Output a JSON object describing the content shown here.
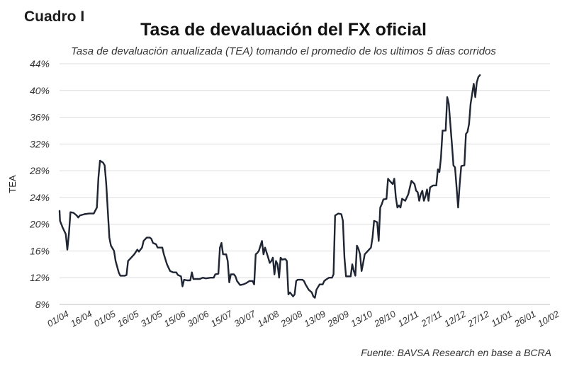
{
  "header": {
    "label": "Cuadro I",
    "title": "Tasa de devaluación del FX oficial",
    "subtitle": "Tasa de devaluación anualizada (TEA) tomando el promedio de los ultimos 5 dias corridos"
  },
  "footer": {
    "source": "Fuente: BAVSA Research en base a BCRA"
  },
  "chart_data": {
    "type": "line",
    "title": "Tasa de devaluación del FX oficial",
    "subtitle": "Tasa de devaluación anualizada (TEA) tomando el promedio de los ultimos 5 dias corridos",
    "xlabel": "",
    "ylabel": "TEA",
    "ylim": [
      8,
      44
    ],
    "y_ticks": [
      8,
      12,
      16,
      20,
      24,
      28,
      32,
      36,
      40,
      44
    ],
    "y_tick_suffix": "%",
    "x_range": [
      0,
      315
    ],
    "x_ticks": [
      {
        "day": 0,
        "label": "01/04"
      },
      {
        "day": 15,
        "label": "16/04"
      },
      {
        "day": 30,
        "label": "01/05"
      },
      {
        "day": 45,
        "label": "16/05"
      },
      {
        "day": 60,
        "label": "31/05"
      },
      {
        "day": 75,
        "label": "15/06"
      },
      {
        "day": 90,
        "label": "30/06"
      },
      {
        "day": 105,
        "label": "15/07"
      },
      {
        "day": 120,
        "label": "30/07"
      },
      {
        "day": 135,
        "label": "14/08"
      },
      {
        "day": 150,
        "label": "29/08"
      },
      {
        "day": 165,
        "label": "13/09"
      },
      {
        "day": 180,
        "label": "28/09"
      },
      {
        "day": 195,
        "label": "13/10"
      },
      {
        "day": 210,
        "label": "28/10"
      },
      {
        "day": 225,
        "label": "12/11"
      },
      {
        "day": 240,
        "label": "27/11"
      },
      {
        "day": 255,
        "label": "12/12"
      },
      {
        "day": 270,
        "label": "27/12"
      },
      {
        "day": 285,
        "label": "11/01"
      },
      {
        "day": 300,
        "label": "26/01"
      },
      {
        "day": 315,
        "label": "10/02"
      }
    ],
    "grid": true,
    "series": [
      {
        "name": "TEA",
        "color": "#1f2533",
        "points": [
          [
            0,
            22
          ],
          [
            0.3,
            20.5
          ],
          [
            2,
            19.5
          ],
          [
            4,
            18.5
          ],
          [
            5,
            16.2
          ],
          [
            6,
            18.5
          ],
          [
            7,
            21.8
          ],
          [
            9,
            21.7
          ],
          [
            11,
            21.3
          ],
          [
            12,
            21
          ],
          [
            13,
            21.3
          ],
          [
            16,
            21.5
          ],
          [
            19,
            21.6
          ],
          [
            22,
            21.6
          ],
          [
            24,
            22.5
          ],
          [
            25,
            27
          ],
          [
            26,
            29.5
          ],
          [
            28,
            29.2
          ],
          [
            29,
            28.8
          ],
          [
            30,
            26
          ],
          [
            31,
            22
          ],
          [
            32,
            18
          ],
          [
            33,
            16.8
          ],
          [
            35,
            16
          ],
          [
            36,
            14.5
          ],
          [
            38,
            12.8
          ],
          [
            39,
            12.3
          ],
          [
            42,
            12.3
          ],
          [
            43,
            12.4
          ],
          [
            44,
            14.5
          ],
          [
            46,
            15
          ],
          [
            48,
            15.5
          ],
          [
            50,
            16.2
          ],
          [
            51,
            15.9
          ],
          [
            53,
            16.5
          ],
          [
            54,
            17.5
          ],
          [
            56,
            18
          ],
          [
            58,
            18
          ],
          [
            59,
            17.8
          ],
          [
            60,
            17.2
          ],
          [
            62,
            17
          ],
          [
            63,
            16.5
          ],
          [
            66,
            16.5
          ],
          [
            67,
            15.5
          ],
          [
            69,
            14
          ],
          [
            70,
            13.5
          ],
          [
            71,
            13
          ],
          [
            73,
            12.8
          ],
          [
            75,
            12.8
          ],
          [
            76,
            12.4
          ],
          [
            78,
            12.2
          ],
          [
            79,
            10.7
          ],
          [
            80,
            11.7
          ],
          [
            82,
            11.6
          ],
          [
            84,
            11.6
          ],
          [
            85,
            12.8
          ],
          [
            86,
            11.8
          ],
          [
            88,
            11.8
          ],
          [
            90,
            11.8
          ],
          [
            92,
            12
          ],
          [
            94,
            11.9
          ],
          [
            97,
            12
          ],
          [
            99,
            12
          ],
          [
            100,
            12.5
          ],
          [
            102,
            12.6
          ],
          [
            103,
            16.5
          ],
          [
            104,
            17.2
          ],
          [
            105,
            15.5
          ],
          [
            107,
            15.5
          ],
          [
            108,
            14.5
          ],
          [
            109,
            11.3
          ],
          [
            110,
            12.5
          ],
          [
            112,
            12.5
          ],
          [
            113,
            12.2
          ],
          [
            114,
            11.5
          ],
          [
            116,
            10.9
          ],
          [
            118,
            11
          ],
          [
            120,
            11.2
          ],
          [
            122,
            11.5
          ],
          [
            124,
            11.5
          ],
          [
            125,
            11
          ],
          [
            126,
            15.5
          ],
          [
            127,
            15.7
          ],
          [
            128,
            16
          ],
          [
            130,
            17.5
          ],
          [
            131,
            15.5
          ],
          [
            132,
            16.5
          ],
          [
            134,
            15
          ],
          [
            135,
            14.2
          ],
          [
            136,
            14.5
          ],
          [
            137,
            15
          ],
          [
            138,
            12.5
          ],
          [
            139,
            14.5
          ],
          [
            140,
            14
          ],
          [
            141,
            12
          ],
          [
            142,
            15
          ],
          [
            143,
            14.7
          ],
          [
            145,
            14.8
          ],
          [
            146,
            14.5
          ],
          [
            147,
            9.5
          ],
          [
            148,
            9.8
          ],
          [
            150,
            9.2
          ],
          [
            151,
            9.5
          ],
          [
            152,
            11.5
          ],
          [
            153,
            11.7
          ],
          [
            155,
            11.7
          ],
          [
            156,
            11.7
          ],
          [
            157,
            11.5
          ],
          [
            158,
            11
          ],
          [
            160,
            10.2
          ],
          [
            162,
            9.8
          ],
          [
            163,
            9.2
          ],
          [
            164,
            9
          ],
          [
            165,
            10.2
          ],
          [
            167,
            11
          ],
          [
            169,
            11
          ],
          [
            170,
            11.5
          ],
          [
            171,
            11.7
          ],
          [
            173,
            12
          ],
          [
            175,
            12
          ],
          [
            176,
            12.5
          ],
          [
            177,
            21.3
          ],
          [
            179,
            21.6
          ],
          [
            181,
            21.5
          ],
          [
            182,
            20.5
          ],
          [
            183,
            15
          ],
          [
            184,
            12.2
          ],
          [
            186,
            12.2
          ],
          [
            187,
            12.2
          ],
          [
            188,
            14
          ],
          [
            189,
            13
          ],
          [
            190,
            12.3
          ],
          [
            191,
            16.8
          ],
          [
            192,
            16.3
          ],
          [
            193,
            15.5
          ],
          [
            194,
            13
          ],
          [
            195,
            14.2
          ],
          [
            196,
            15.5
          ],
          [
            198,
            16
          ],
          [
            200,
            16.5
          ],
          [
            201,
            18
          ],
          [
            202,
            20.5
          ],
          [
            204,
            20.3
          ],
          [
            205,
            17.5
          ],
          [
            206,
            22.5
          ],
          [
            207,
            23
          ],
          [
            208,
            23.7
          ],
          [
            210,
            23.8
          ],
          [
            211,
            26.8
          ],
          [
            212,
            26.5
          ],
          [
            214,
            26
          ],
          [
            215,
            26.8
          ],
          [
            216,
            24
          ],
          [
            217,
            22.5
          ],
          [
            218,
            22.8
          ],
          [
            219,
            22.5
          ],
          [
            220,
            23.8
          ],
          [
            222,
            23.5
          ],
          [
            224,
            24.5
          ],
          [
            226,
            26.5
          ],
          [
            228,
            26
          ],
          [
            229,
            25
          ],
          [
            230,
            24.8
          ],
          [
            231,
            23.5
          ],
          [
            232,
            24.5
          ],
          [
            233,
            25
          ],
          [
            234,
            23.5
          ],
          [
            235,
            24.2
          ],
          [
            236,
            25.2
          ],
          [
            237,
            23.5
          ],
          [
            238,
            25.5
          ],
          [
            240,
            25.8
          ],
          [
            242,
            25.8
          ],
          [
            243,
            28.2
          ],
          [
            244,
            27.8
          ],
          [
            245,
            30
          ],
          [
            246,
            34
          ],
          [
            248,
            34
          ],
          [
            249,
            39
          ],
          [
            250,
            38
          ],
          [
            251,
            35
          ],
          [
            252,
            32
          ],
          [
            253,
            28.8
          ],
          [
            254,
            28.5
          ],
          [
            255,
            25.5
          ],
          [
            256,
            22.5
          ],
          [
            257,
            26
          ],
          [
            258,
            28.7
          ],
          [
            260,
            28.8
          ],
          [
            261,
            33.5
          ],
          [
            262,
            33.8
          ],
          [
            263,
            35
          ],
          [
            264,
            38
          ],
          [
            265,
            39.5
          ],
          [
            266,
            41
          ],
          [
            267,
            39
          ],
          [
            268,
            41.2
          ],
          [
            269,
            42
          ],
          [
            270,
            42.3
          ]
        ]
      }
    ]
  }
}
